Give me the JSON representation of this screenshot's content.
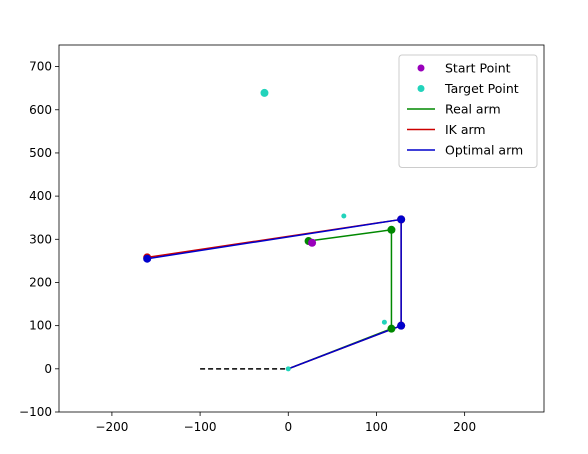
{
  "chart_data": {
    "type": "line",
    "xlim": [
      -260,
      290
    ],
    "ylim": [
      -100,
      750
    ],
    "xticks": [
      -200,
      -100,
      0,
      100,
      200
    ],
    "yticks": [
      -100,
      0,
      100,
      200,
      300,
      400,
      500,
      600,
      700
    ],
    "grid": false,
    "legend_placement": "top-right",
    "baseline": {
      "x": [
        -100,
        0
      ],
      "y": [
        0,
        0
      ],
      "color": "#000000",
      "style": "dashed"
    },
    "start_points": {
      "color": "#9900bb",
      "points": [
        [
          27,
          292
        ]
      ]
    },
    "target_points": {
      "color": "#22d3bb",
      "points": [
        [
          -27,
          639
        ],
        [
          63,
          354
        ],
        [
          109,
          108
        ],
        [
          0,
          0
        ]
      ]
    },
    "series": [
      {
        "name": "Real arm",
        "color": "#008800",
        "x": [
          0,
          117,
          117,
          23
        ],
        "y": [
          0,
          93,
          322,
          296
        ]
      },
      {
        "name": "IK arm",
        "color": "#cc0000",
        "x": [
          0,
          128,
          128,
          -160
        ],
        "y": [
          0,
          100,
          346,
          258
        ]
      },
      {
        "name": "Optimal arm",
        "color": "#0000cc",
        "x": [
          0,
          128,
          128,
          -160
        ],
        "y": [
          0,
          100,
          346,
          255
        ]
      }
    ],
    "legend": [
      {
        "label": "Start Point",
        "kind": "marker",
        "color": "#9900bb"
      },
      {
        "label": "Target Point",
        "kind": "marker",
        "color": "#22d3bb"
      },
      {
        "label": "Real arm",
        "kind": "line",
        "color": "#008800"
      },
      {
        "label": "IK arm",
        "kind": "line",
        "color": "#cc0000"
      },
      {
        "label": "Optimal arm",
        "kind": "line",
        "color": "#0000cc"
      }
    ]
  }
}
